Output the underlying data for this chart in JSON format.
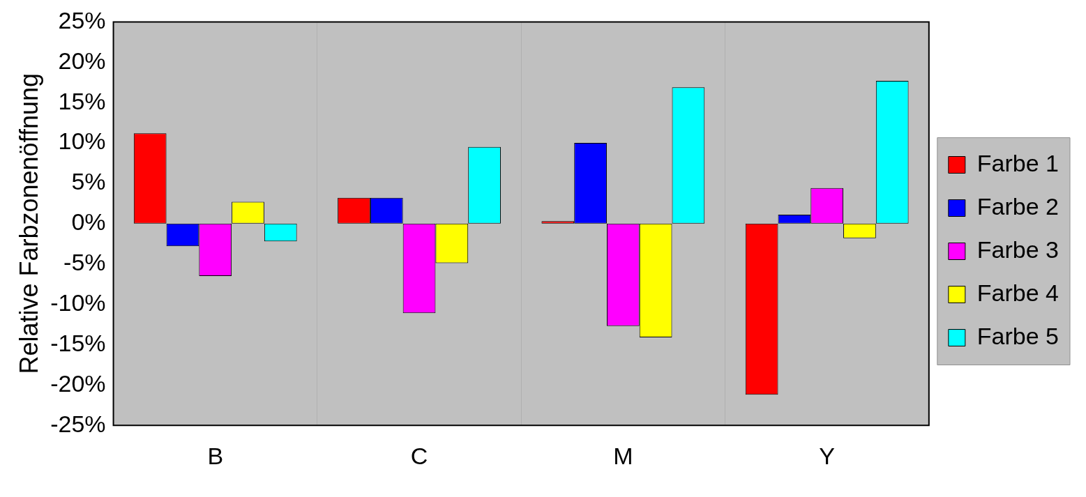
{
  "chart_data": {
    "type": "bar",
    "ylabel": "Relative Farbzonenöffnung",
    "categories": [
      "B",
      "C",
      "M",
      "Y"
    ],
    "series": [
      {
        "name": "Farbe 1",
        "color": "#ff0000",
        "values": [
          11.2,
          3.2,
          0.3,
          -21.2
        ]
      },
      {
        "name": "Farbe 2",
        "color": "#0000ff",
        "values": [
          -2.8,
          3.2,
          10.0,
          1.1
        ]
      },
      {
        "name": "Farbe 3",
        "color": "#ff00ff",
        "values": [
          -6.5,
          -11.1,
          -12.7,
          4.4
        ]
      },
      {
        "name": "Farbe 4",
        "color": "#ffff00",
        "values": [
          2.7,
          -4.9,
          -14.1,
          -1.8
        ]
      },
      {
        "name": "Farbe 5",
        "color": "#00ffff",
        "values": [
          -2.2,
          9.5,
          16.9,
          17.7
        ]
      }
    ],
    "ylim": [
      -25,
      25
    ],
    "yticks": [
      {
        "value": -25,
        "label": "-25%"
      },
      {
        "value": -20,
        "label": "-20%"
      },
      {
        "value": -15,
        "label": "-15%"
      },
      {
        "value": -10,
        "label": "-10%"
      },
      {
        "value": -5,
        "label": "-5%"
      },
      {
        "value": 0,
        "label": "0%"
      },
      {
        "value": 5,
        "label": "5%"
      },
      {
        "value": 10,
        "label": "10%"
      },
      {
        "value": 15,
        "label": "15%"
      },
      {
        "value": 20,
        "label": "20%"
      },
      {
        "value": 25,
        "label": "25%"
      }
    ],
    "grid": "x",
    "legend": "right"
  }
}
